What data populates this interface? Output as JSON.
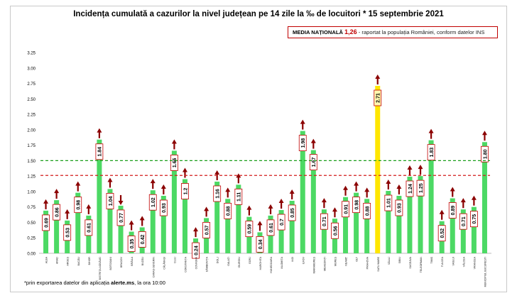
{
  "header": {
    "title": "Incidența cumulată a cazurilor la nivel județean pe 14 zile la ‰ de locuitori * 15 septembrie 2021",
    "media_label": "MEDIA NAȚIONALĂ",
    "media_value": "1,26",
    "media_note": " - raportat la populația României, conform datelor INS"
  },
  "footnote": {
    "prefix": "*prin exportarea datelor din aplicația ",
    "app": "alerte.ms",
    "suffix": ", la ora 10:00"
  },
  "chart_data": {
    "type": "bar",
    "title": "Incidența cumulată a cazurilor la nivel județean pe 14 zile la ‰ de locuitori * 15 septembrie 2021",
    "categories": [
      "ALBA",
      "ARAD",
      "ARGEȘ",
      "BACĂU",
      "BIHOR",
      "BISTRIȚA-NĂSĂUD",
      "BOTOȘANI",
      "BRAȘOV",
      "BRĂILA",
      "BUZĂU",
      "CARAȘ-SEVERIN",
      "CĂLĂRAȘI",
      "CLUJ",
      "CONSTANȚA",
      "COVASNA",
      "DÂMBOVIȚA",
      "DOLJ",
      "GALAȚI",
      "GIURGIU",
      "GORJ",
      "HARGHITA",
      "HUNEDOARA",
      "IALOMIȚA",
      "IAȘI",
      "ILFOV",
      "MARAMUREȘ",
      "MEHEDINȚI",
      "MUREȘ",
      "NEAMȚ",
      "OLT",
      "PRAHOVA",
      "SATU MARE",
      "SĂLAJ",
      "SIBIU",
      "SUCEAVA",
      "TELEORMAN",
      "TIMIȘ",
      "TULCEA",
      "VASLUI",
      "VÂLCEA",
      "VRANCEA",
      "MUNICIPIUL BUCUREȘTI"
    ],
    "values": [
      0.69,
      0.86,
      0.53,
      0.98,
      0.61,
      1.84,
      1.04,
      0.77,
      0.35,
      0.42,
      1.02,
      0.93,
      1.66,
      1.2,
      0.24,
      0.57,
      1.16,
      0.88,
      1.11,
      0.59,
      0.34,
      0.61,
      0.7,
      0.85,
      1.98,
      1.67,
      0.71,
      0.56,
      0.91,
      0.98,
      0.88,
      2.71,
      1.01,
      0.93,
      1.24,
      1.25,
      1.83,
      0.52,
      0.89,
      0.71,
      0.75,
      1.8
    ],
    "value_labels": [
      "0.69",
      "0.86",
      "0.53",
      "0.98",
      "0.61",
      "1.84",
      "1.04",
      "0.77",
      "0.35",
      "0.42",
      "1.02",
      "0.93",
      "1.66",
      "1.2",
      "0.24",
      "0.57",
      "1.16",
      "0.88",
      "1.11",
      "0.59",
      "0.34",
      "0.61",
      "0.7",
      "0.85",
      "1.98",
      "1.67",
      "0.71",
      "0.56",
      "0.91",
      "0.98",
      "0.88",
      "2.71",
      "1.01",
      "0.93",
      "1.24",
      "1.25",
      "1.83",
      "0.52",
      "0.89",
      "0.71",
      "0.75",
      "1.80"
    ],
    "trend": [
      "up",
      "up",
      "up",
      "up",
      "up",
      "up",
      "up",
      "down",
      "up",
      "up",
      "up",
      "up",
      "up",
      "up",
      "up",
      "up",
      "up",
      "up",
      "up",
      "up",
      "up",
      "up",
      "up",
      "up",
      "up",
      "up",
      "up",
      "up",
      "up",
      "up",
      "up",
      "up",
      "up",
      "up",
      "up",
      "up",
      "up",
      "up",
      "up",
      "up",
      "up",
      "up"
    ],
    "ylim": [
      0,
      3.25
    ],
    "yticks": [
      "0.00",
      "0.25",
      "0.50",
      "0.75",
      "1.00",
      "1.25",
      "1.50",
      "1.75",
      "2.00",
      "2.25",
      "2.50",
      "2.75",
      "3.00",
      "3.25"
    ],
    "reference_lines": [
      {
        "value": 1.5,
        "color": "#1a9e1a",
        "style": "dashed"
      },
      {
        "value": 1.26,
        "color": "#d21b1b",
        "style": "dashed"
      }
    ],
    "highlight_category": "SATU MARE",
    "colors": {
      "bar": "#4cd964",
      "highlight_bar": "#ffe600",
      "arrow": "#8b0000",
      "label_border": "#c00000"
    },
    "grid": false
  }
}
